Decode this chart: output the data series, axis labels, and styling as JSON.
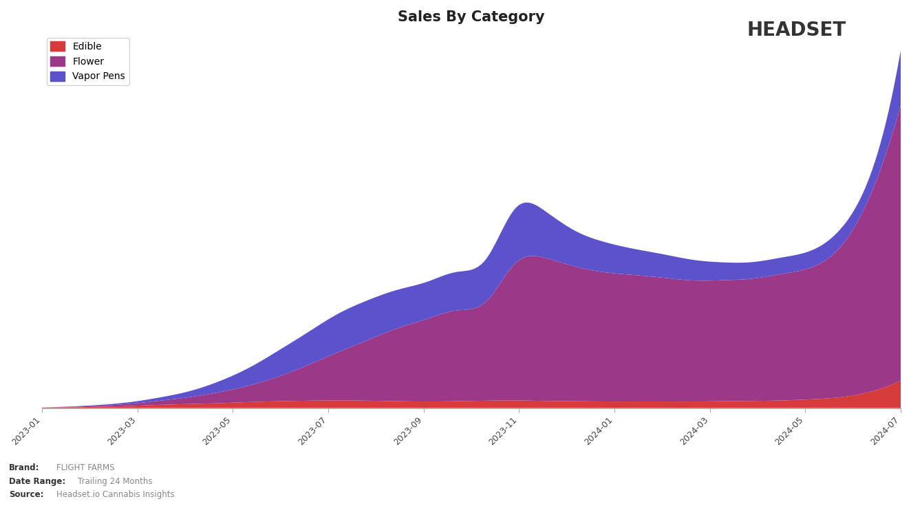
{
  "title": "Sales By Category",
  "title_fontsize": 15,
  "categories": [
    "Edible",
    "Flower",
    "Vapor Pens"
  ],
  "colors": [
    "#d63b3b",
    "#9b3888",
    "#5b52cc"
  ],
  "x_labels": [
    "2023-01",
    "2023-03",
    "2023-05",
    "2023-07",
    "2023-09",
    "2023-11",
    "2024-01",
    "2024-03",
    "2024-05",
    "2024-07"
  ],
  "background_color": "#ffffff",
  "brand": "FLIGHT FARMS",
  "date_range": "Trailing 24 Months",
  "source": "Headset.io Cannabis Insights",
  "edible": [
    0.002,
    0.003,
    0.005,
    0.008,
    0.012,
    0.015,
    0.018,
    0.022,
    0.025,
    0.027,
    0.028,
    0.027,
    0.025,
    0.024,
    0.025,
    0.027,
    0.028,
    0.026,
    0.025,
    0.024,
    0.024,
    0.024,
    0.024,
    0.025,
    0.026,
    0.028,
    0.032,
    0.04,
    0.06,
    0.1
  ],
  "flower": [
    0.0,
    0.002,
    0.004,
    0.008,
    0.015,
    0.025,
    0.04,
    0.06,
    0.09,
    0.13,
    0.175,
    0.22,
    0.265,
    0.3,
    0.33,
    0.36,
    0.5,
    0.52,
    0.49,
    0.47,
    0.46,
    0.45,
    0.44,
    0.44,
    0.445,
    0.46,
    0.48,
    0.55,
    0.72,
    1.0
  ],
  "vapor_pens": [
    0.0,
    0.001,
    0.003,
    0.006,
    0.012,
    0.022,
    0.04,
    0.065,
    0.095,
    0.12,
    0.14,
    0.145,
    0.14,
    0.135,
    0.14,
    0.155,
    0.2,
    0.17,
    0.13,
    0.11,
    0.095,
    0.085,
    0.075,
    0.065,
    0.06,
    0.06,
    0.062,
    0.065,
    0.075,
    0.2
  ],
  "n_points": 30
}
